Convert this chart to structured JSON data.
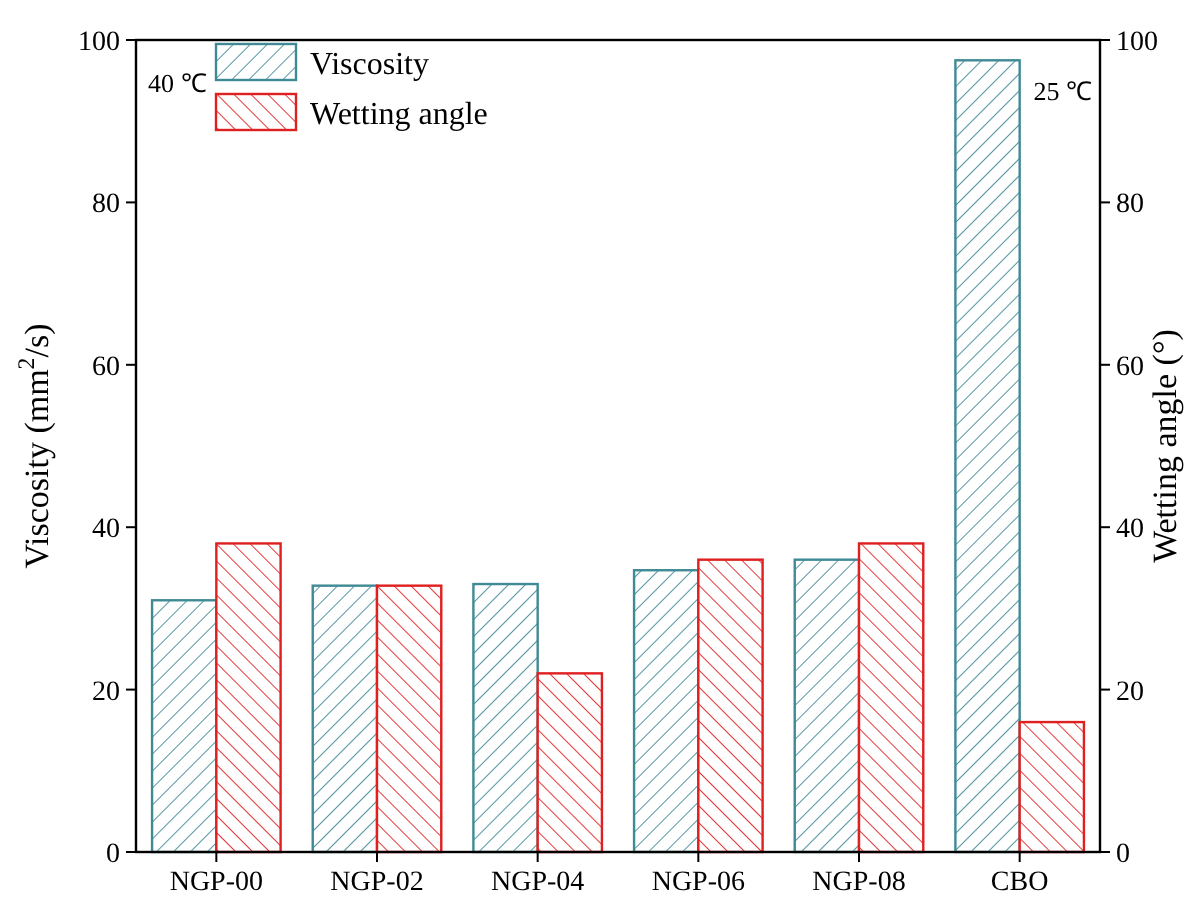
{
  "chart_data": {
    "type": "bar",
    "categories": [
      "NGP-00",
      "NGP-02",
      "NGP-04",
      "NGP-06",
      "NGP-08",
      "CBO"
    ],
    "series": [
      {
        "name": "Viscosity",
        "color": "#3f8a94",
        "values": [
          31,
          32.8,
          33,
          34.7,
          36,
          97.5
        ]
      },
      {
        "name": "Wetting angle",
        "color": "#e02020",
        "values": [
          38,
          32.8,
          22,
          36,
          38,
          16
        ],
        "axis": "y2"
      }
    ],
    "ylabel": "Viscosity (mm$^{2}$/s)",
    "y2label": "Wetting angle (°)",
    "ylim": [
      0,
      100
    ],
    "yticks": [
      0,
      20,
      40,
      60,
      80,
      100
    ],
    "y2lim": [
      0,
      100
    ],
    "y2ticks": [
      0,
      20,
      40,
      60,
      80,
      100
    ],
    "annotations": [
      "40 ℃",
      "25 ℃"
    ],
    "legend": "top left",
    "grid": false
  }
}
